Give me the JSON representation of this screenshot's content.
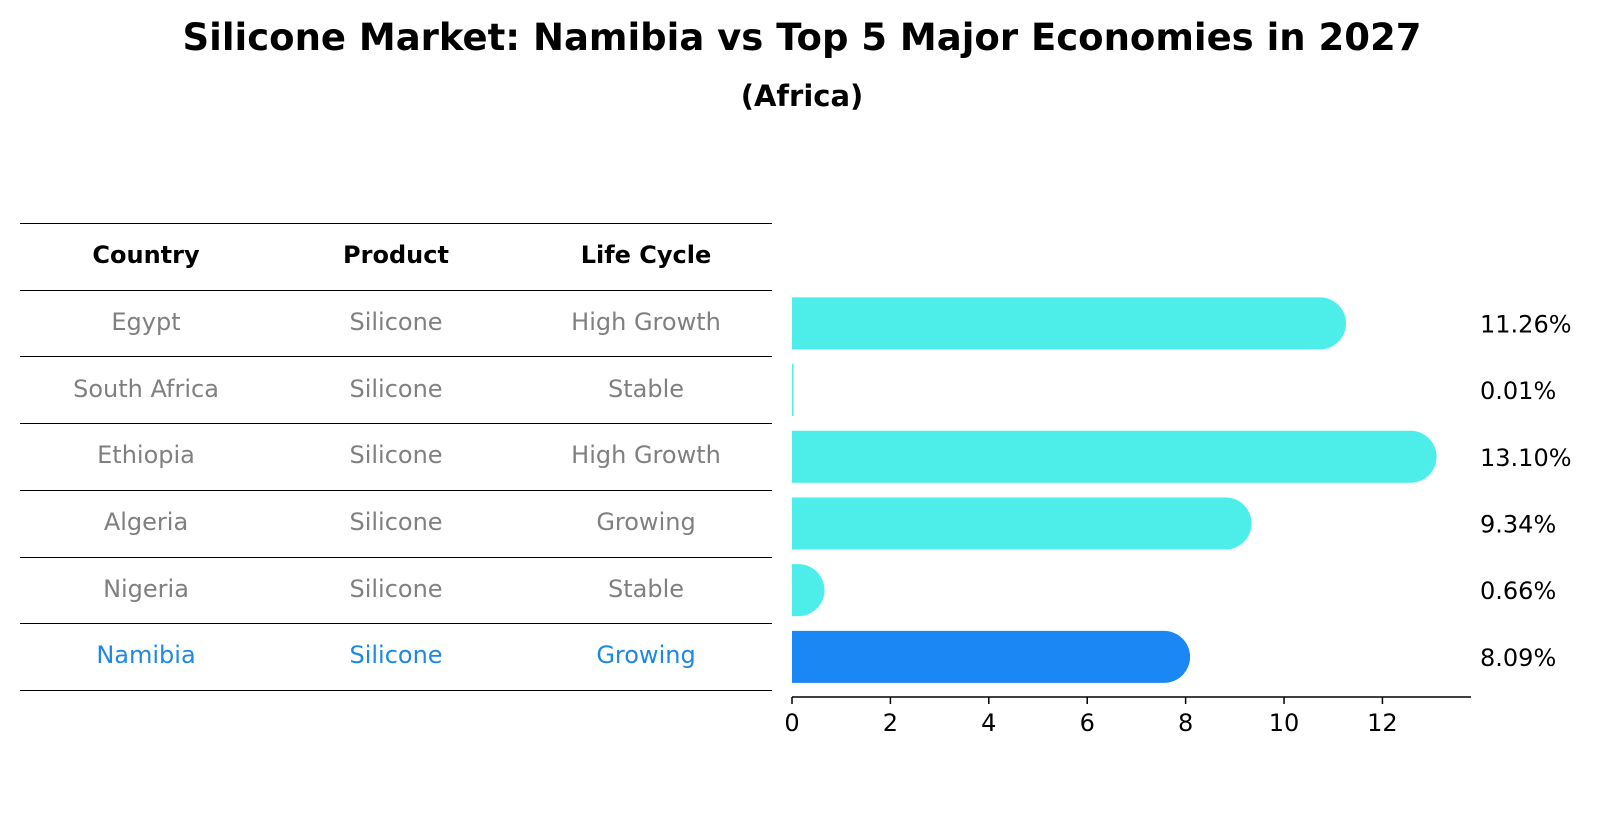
{
  "title": "Silicone Market: Namibia vs Top 5 Major Economies in 2027",
  "subtitle": "(Africa)",
  "table": {
    "headers": [
      "Country",
      "Product",
      "Life Cycle"
    ],
    "rows": [
      {
        "country": "Egypt",
        "product": "Silicone",
        "life_cycle": "High Growth"
      },
      {
        "country": "South Africa",
        "product": "Silicone",
        "life_cycle": "Stable"
      },
      {
        "country": "Ethiopia",
        "product": "Silicone",
        "life_cycle": "High Growth"
      },
      {
        "country": "Algeria",
        "product": "Silicone",
        "life_cycle": "Growing"
      },
      {
        "country": "Nigeria",
        "product": "Silicone",
        "life_cycle": "Stable"
      },
      {
        "country": "Namibia",
        "product": "Silicone",
        "life_cycle": "Growing"
      }
    ]
  },
  "colors": {
    "bar": "#4deeea",
    "highlight": "#1a87f5",
    "highlight_text": "#1e88e5",
    "muted_text": "#808080"
  },
  "chart_data": {
    "type": "bar",
    "orientation": "horizontal",
    "categories": [
      "Egypt",
      "South Africa",
      "Ethiopia",
      "Algeria",
      "Nigeria",
      "Namibia"
    ],
    "values": [
      11.26,
      0.01,
      13.1,
      9.34,
      0.66,
      8.09
    ],
    "value_labels": [
      "11.26%",
      "0.01%",
      "13.10%",
      "9.34%",
      "0.66%",
      "8.09%"
    ],
    "highlight": "Namibia",
    "xlim": [
      0,
      13.8
    ],
    "xticks": [
      0,
      2,
      4,
      6,
      8,
      10,
      12
    ],
    "xtick_labels": [
      "0",
      "2",
      "4",
      "6",
      "8",
      "10",
      "12"
    ],
    "title": "Silicone Market: Namibia vs Top 5 Major Economies in 2027",
    "xlabel": "",
    "ylabel": ""
  }
}
